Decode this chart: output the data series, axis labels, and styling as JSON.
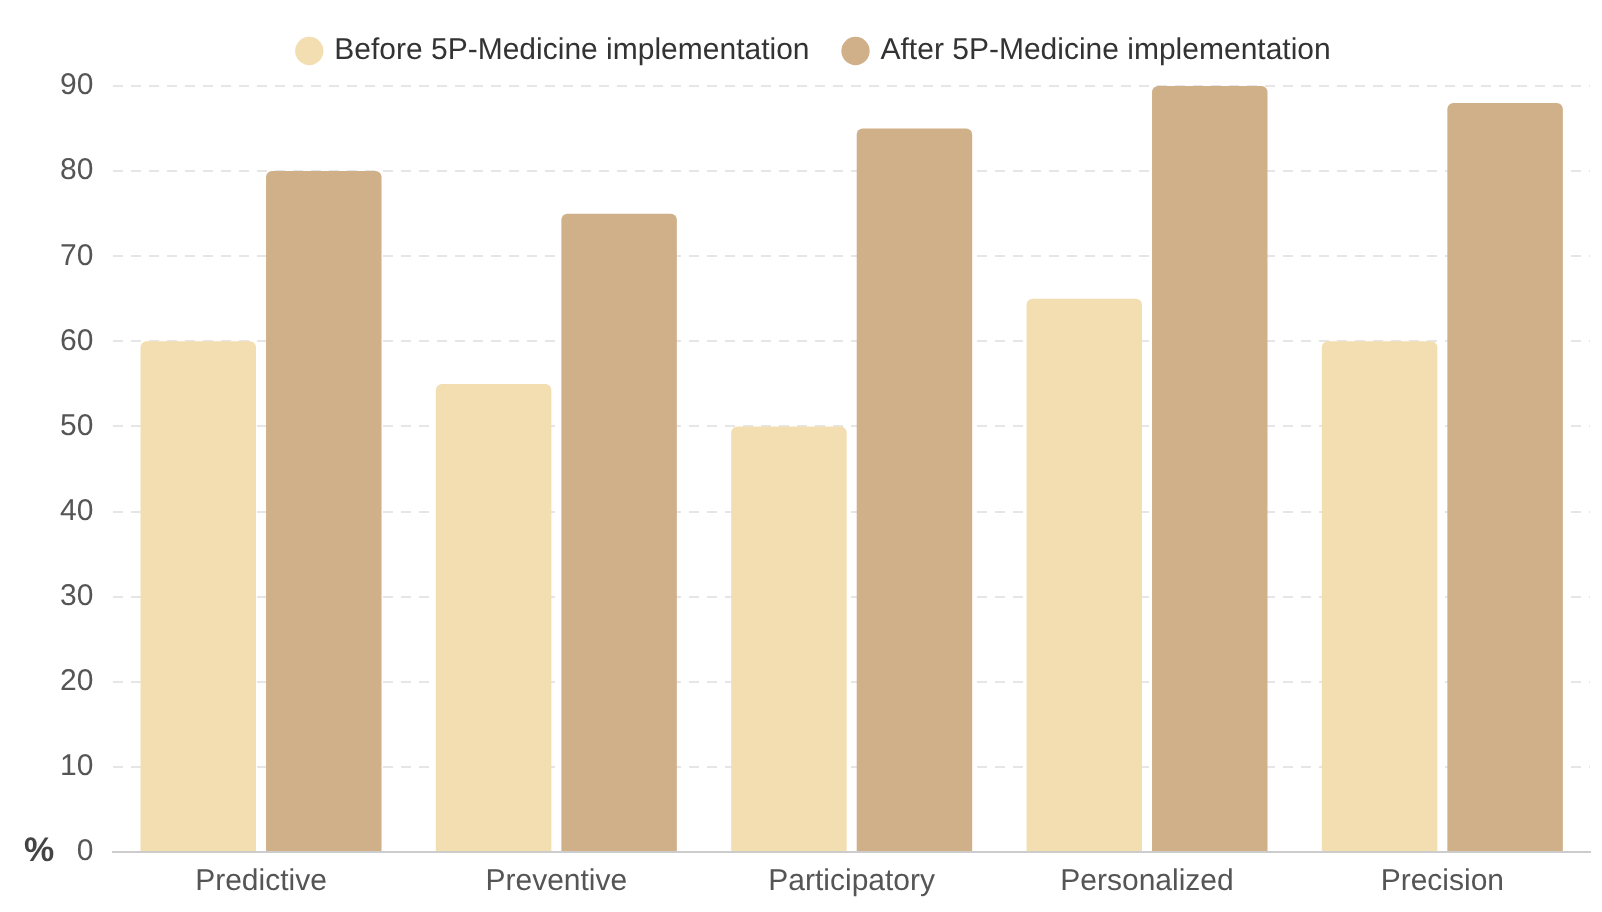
{
  "chart_data": {
    "type": "bar",
    "ylabel": "%",
    "categories": [
      "Predictive",
      "Preventive",
      "Participatory",
      "Personalized",
      "Precision"
    ],
    "series": [
      {
        "name": "Before 5P-Medicine implementation",
        "color": "#f3deb1",
        "values": [
          60,
          55,
          50,
          65,
          60
        ]
      },
      {
        "name": "After 5P-Medicine implementation",
        "color": "#cfb088",
        "values": [
          80,
          75,
          85,
          90,
          88
        ]
      }
    ],
    "ylim": [
      0,
      90
    ],
    "yticks": [
      0,
      10,
      20,
      30,
      40,
      50,
      60,
      70,
      80,
      90
    ],
    "grid": "y",
    "legend": "top"
  }
}
